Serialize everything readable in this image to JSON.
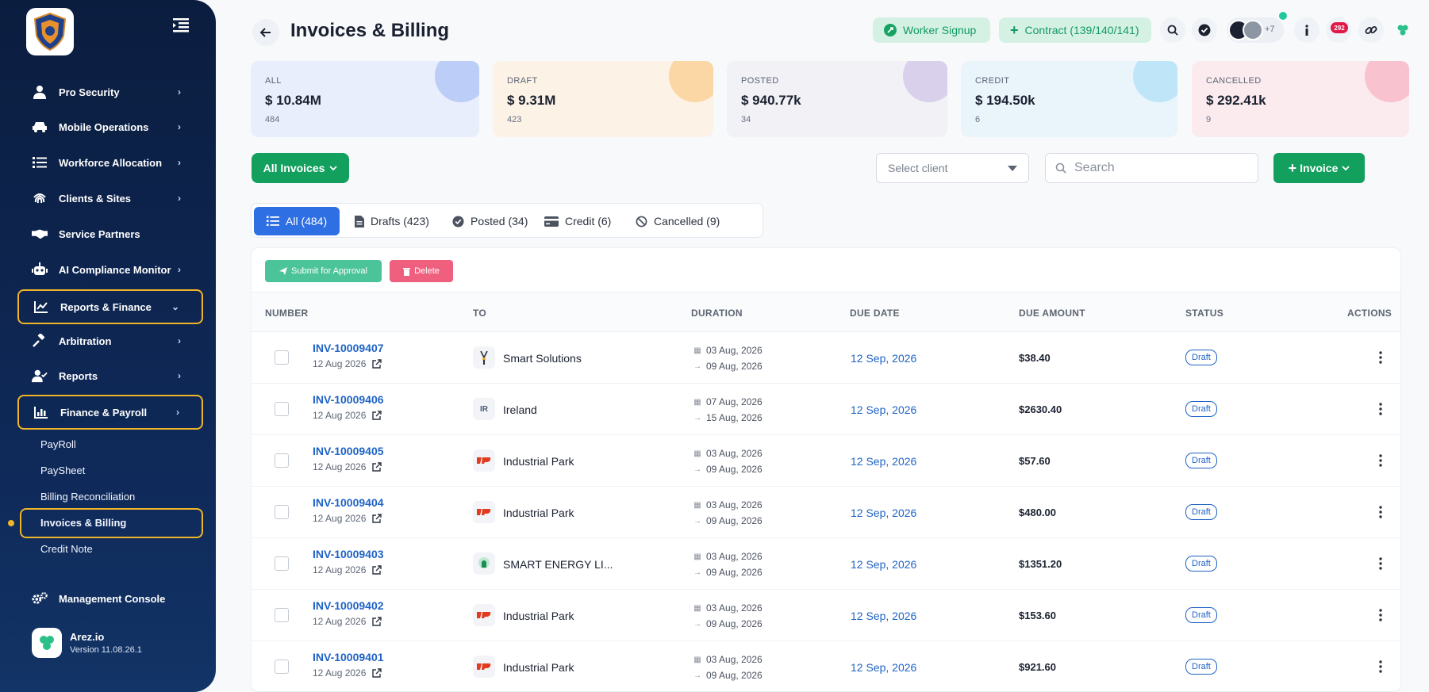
{
  "sidebar": {
    "items": [
      {
        "label": "Pro Security",
        "icon": "user-icon"
      },
      {
        "label": "Mobile Operations",
        "icon": "car-icon"
      },
      {
        "label": "Workforce Allocation",
        "icon": "list-icon"
      },
      {
        "label": "Clients & Sites",
        "icon": "fingerprint-icon"
      },
      {
        "label": "Service Partners",
        "icon": "handshake-icon"
      },
      {
        "label": "AI Compliance Monitor",
        "icon": "robot-icon"
      },
      {
        "label": "Reports & Finance",
        "icon": "chart-line-icon"
      },
      {
        "label": "Arbitration",
        "icon": "gavel-icon"
      },
      {
        "label": "Reports",
        "icon": "user-check-icon"
      },
      {
        "label": "Finance & Payroll",
        "icon": "chart-bar-icon"
      }
    ],
    "sub_items": [
      "PayRoll",
      "PaySheet",
      "Billing Reconciliation",
      "Invoices & Billing",
      "Credit Note"
    ],
    "management": "Management Console",
    "app_name": "Arez.io",
    "version": "Version 11.08.26.1"
  },
  "header": {
    "title": "Invoices & Billing",
    "worker_signup": "Worker Signup",
    "contract": "Contract (139/140/141)",
    "avatar_more": "+7",
    "notifications": "292"
  },
  "stats": [
    {
      "label": "ALL",
      "value": "$ 10.84M",
      "count": "484",
      "bg": "#e8eefb",
      "blob": "#bccdf7"
    },
    {
      "label": "DRAFT",
      "value": "$ 9.31M",
      "count": "423",
      "bg": "#fdf2e6",
      "blob": "#fbd7a6"
    },
    {
      "label": "POSTED",
      "value": "$ 940.77k",
      "count": "34",
      "bg": "#f1f1f6",
      "blob": "#d9d1ec"
    },
    {
      "label": "CREDIT",
      "value": "$ 194.50k",
      "count": "6",
      "bg": "#e9f5fb",
      "blob": "#bfe6f8"
    },
    {
      "label": "CANCELLED",
      "value": "$ 292.41k",
      "count": "9",
      "bg": "#fcebee",
      "blob": "#f8c3cf"
    }
  ],
  "filters": {
    "all_invoices": "All Invoices",
    "select_client": "Select client",
    "search_placeholder": "Search",
    "add_invoice": "Invoice"
  },
  "tabs": [
    {
      "label": "All (484)",
      "icon": "list-icon"
    },
    {
      "label": "Drafts (423)",
      "icon": "document-icon"
    },
    {
      "label": "Posted (34)",
      "icon": "check-circle-icon"
    },
    {
      "label": "Credit (6)",
      "icon": "credit-card-icon"
    },
    {
      "label": "Cancelled (9)",
      "icon": "ban-icon"
    }
  ],
  "bulk": {
    "submit": "Submit for Approval",
    "delete": "Delete"
  },
  "table": {
    "headers": [
      "NUMBER",
      "TO",
      "DURATION",
      "DUE DATE",
      "DUE AMOUNT",
      "STATUS",
      "ACTIONS"
    ],
    "rows": [
      {
        "number": "INV-10009407",
        "date": "12 Aug 2026",
        "to": "Smart Solutions",
        "logo": "smart-solutions-logo",
        "from": "03 Aug, 2026",
        "until": "09 Aug, 2026",
        "due": "12 Sep, 2026",
        "amount": "$38.40",
        "status": "Draft"
      },
      {
        "number": "INV-10009406",
        "date": "12 Aug 2026",
        "to": "Ireland",
        "logo": "IR",
        "from": "07 Aug, 2026",
        "until": "15 Aug, 2026",
        "due": "12 Sep, 2026",
        "amount": "$2630.40",
        "status": "Draft"
      },
      {
        "number": "INV-10009405",
        "date": "12 Aug 2026",
        "to": "Industrial Park",
        "logo": "industrial-park-logo",
        "from": "03 Aug, 2026",
        "until": "09 Aug, 2026",
        "due": "12 Sep, 2026",
        "amount": "$57.60",
        "status": "Draft"
      },
      {
        "number": "INV-10009404",
        "date": "12 Aug 2026",
        "to": "Industrial Park",
        "logo": "industrial-park-logo",
        "from": "03 Aug, 2026",
        "until": "09 Aug, 2026",
        "due": "12 Sep, 2026",
        "amount": "$480.00",
        "status": "Draft"
      },
      {
        "number": "INV-10009403",
        "date": "12 Aug 2026",
        "to": "SMART ENERGY LI...",
        "logo": "smart-energy-logo",
        "from": "03 Aug, 2026",
        "until": "09 Aug, 2026",
        "due": "12 Sep, 2026",
        "amount": "$1351.20",
        "status": "Draft"
      },
      {
        "number": "INV-10009402",
        "date": "12 Aug 2026",
        "to": "Industrial Park",
        "logo": "industrial-park-logo",
        "from": "03 Aug, 2026",
        "until": "09 Aug, 2026",
        "due": "12 Sep, 2026",
        "amount": "$153.60",
        "status": "Draft"
      },
      {
        "number": "INV-10009401",
        "date": "12 Aug 2026",
        "to": "Industrial Park",
        "logo": "industrial-park-logo",
        "from": "03 Aug, 2026",
        "until": "09 Aug, 2026",
        "due": "12 Sep, 2026",
        "amount": "$921.60",
        "status": "Draft"
      }
    ]
  }
}
